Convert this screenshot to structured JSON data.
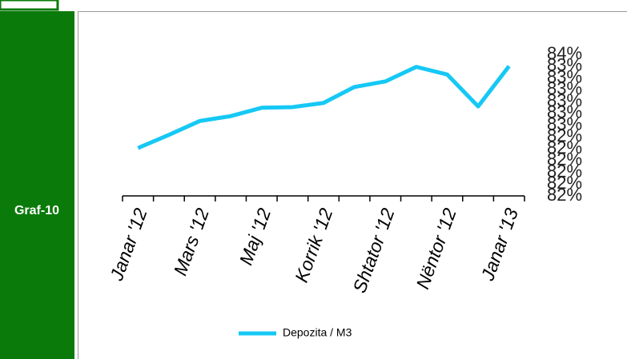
{
  "chart_data": {
    "type": "line",
    "label": "Graf-10",
    "categories": [
      "Janar '12",
      null,
      "Mars '12",
      null,
      "Maj '12",
      null,
      "Korrik '12",
      null,
      "Shtator '12",
      null,
      "Nëntor '12",
      null,
      "Janar '13"
    ],
    "series": [
      {
        "name": "Depozita / M3",
        "color": "#16c8f5",
        "values": [
          82.19,
          82.38,
          82.58,
          82.65,
          82.77,
          82.78,
          82.84,
          83.07,
          83.15,
          83.36,
          83.25,
          82.79,
          83.37
        ]
      }
    ],
    "ylim": [
      81.5,
      83.54
    ],
    "yticks": [
      {
        "value": 81.5,
        "label": "82%"
      },
      {
        "value": 81.67,
        "label": "82%"
      },
      {
        "value": 81.84,
        "label": "82%"
      },
      {
        "value": 82.01,
        "label": "82%"
      },
      {
        "value": 82.18,
        "label": "82%"
      },
      {
        "value": 82.35,
        "label": "82%"
      },
      {
        "value": 82.52,
        "label": "83%"
      },
      {
        "value": 82.69,
        "label": "83%"
      },
      {
        "value": 82.86,
        "label": "83%"
      },
      {
        "value": 83.03,
        "label": "83%"
      },
      {
        "value": 83.2,
        "label": "83%"
      },
      {
        "value": 83.37,
        "label": "83%"
      },
      {
        "value": 83.54,
        "label": "84%"
      }
    ],
    "grid": false,
    "legend": "bottom"
  }
}
